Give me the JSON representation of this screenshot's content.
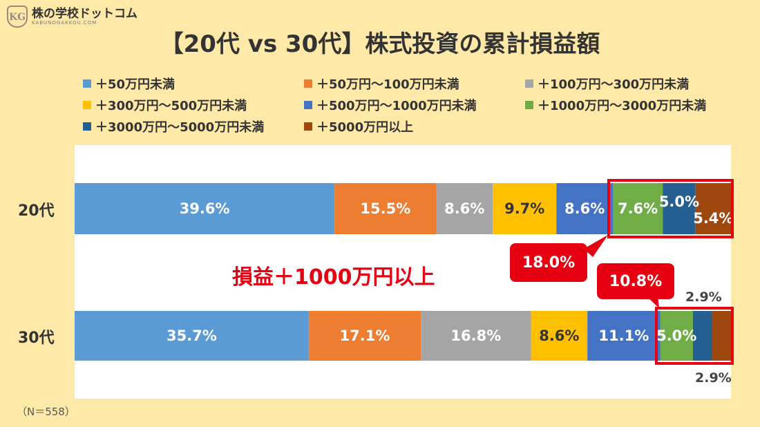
{
  "brand": {
    "mark": "KG",
    "name": "株の学校ドットコム",
    "sub": "KABUNOGAKKOU.COM"
  },
  "title": "【20代 vs 30代】株式投資の累計損益額",
  "legend": [
    {
      "label": "＋50万円未満",
      "color": "#5B9BD5"
    },
    {
      "label": "＋50万円～100万円未満",
      "color": "#ED7D31"
    },
    {
      "label": "＋100万円～300万円未満",
      "color": "#A5A5A5"
    },
    {
      "label": "＋300万円～500万円未満",
      "color": "#FFC000"
    },
    {
      "label": "＋500万円～1000万円未満",
      "color": "#4472C4"
    },
    {
      "label": "＋1000万円～3000万円未満",
      "color": "#70AD47"
    },
    {
      "label": "＋3000万円～5000万円未満",
      "color": "#255E91"
    },
    {
      "label": "＋5000万円以上",
      "color": "#9E480E"
    }
  ],
  "chart_data": {
    "type": "bar",
    "orientation": "horizontal",
    "stacked": true,
    "categories": [
      "20代",
      "30代"
    ],
    "series": [
      {
        "name": "＋50万円未満",
        "values": [
          39.6,
          35.7
        ],
        "labels": [
          "39.6%",
          "35.7%"
        ]
      },
      {
        "name": "＋50万円～100万円未満",
        "values": [
          15.5,
          17.1
        ],
        "labels": [
          "15.5%",
          "17.1%"
        ]
      },
      {
        "name": "＋100万円～300万円未満",
        "values": [
          8.6,
          16.8
        ],
        "labels": [
          "8.6%",
          "16.8%"
        ]
      },
      {
        "name": "＋300万円～500万円未満",
        "values": [
          9.7,
          8.6
        ],
        "labels": [
          "9.7%",
          "8.6%"
        ]
      },
      {
        "name": "＋500万円～1000万円未満",
        "values": [
          8.6,
          11.1
        ],
        "labels": [
          "8.6%",
          "11.1%"
        ]
      },
      {
        "name": "＋1000万円～3000万円未満",
        "values": [
          7.6,
          5.0
        ],
        "labels": [
          "7.6%",
          "5.0%"
        ]
      },
      {
        "name": "＋3000万円～5000万円未満",
        "values": [
          5.0,
          2.9
        ],
        "labels": [
          "5.0%",
          "2.9%"
        ]
      },
      {
        "name": "＋5000万円以上",
        "values": [
          5.4,
          2.9
        ],
        "labels": [
          "5.4%",
          "2.9%"
        ]
      }
    ],
    "xlim": [
      0,
      100
    ],
    "legend_position": "top",
    "grid": false
  },
  "annotation": "損益＋1000万円以上",
  "callouts": [
    "18.0%",
    "10.8%"
  ],
  "note": "（N＝558）"
}
